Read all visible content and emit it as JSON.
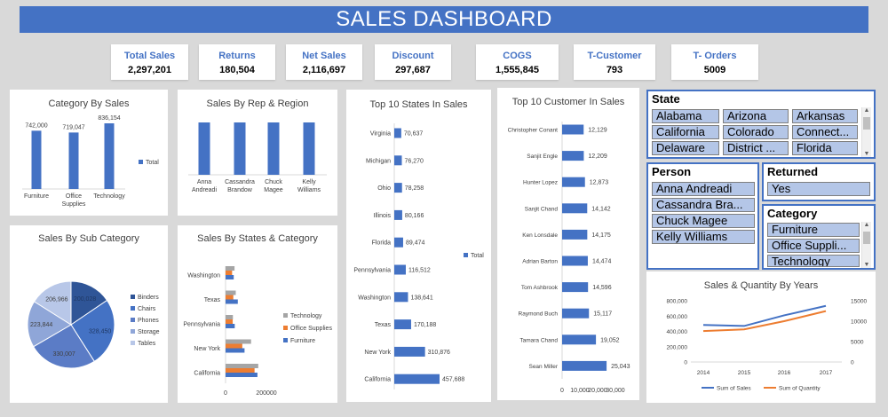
{
  "title": "SALES DASHBOARD",
  "kpis": [
    {
      "label": "Total Sales",
      "value": "2,297,201"
    },
    {
      "label": "Returns",
      "value": "180,504"
    },
    {
      "label": "Net Sales",
      "value": "2,116,697"
    },
    {
      "label": "Discount",
      "value": "297,687"
    },
    {
      "label": "COGS",
      "value": "1,555,845"
    },
    {
      "label": "T-Customer",
      "value": "793"
    },
    {
      "label": "T- Orders",
      "value": "5009"
    }
  ],
  "slicers": {
    "state": {
      "header": "State",
      "items": [
        "Alabama",
        "Arizona",
        "Arkansas",
        "California",
        "Colorado",
        "Connect...",
        "Delaware",
        "District ...",
        "Florida"
      ]
    },
    "person": {
      "header": "Person",
      "items": [
        "Anna Andreadi",
        "Cassandra Bra...",
        "Chuck Magee",
        "Kelly Williams"
      ]
    },
    "returned": {
      "header": "Returned",
      "items": [
        "Yes"
      ]
    },
    "category": {
      "header": "Category",
      "items": [
        "Furniture",
        "Office Suppli...",
        "Technology"
      ]
    }
  },
  "colors": {
    "accent": "#4472c4",
    "orange": "#ed7d31",
    "gray": "#a5a5a5"
  },
  "chart_data": [
    {
      "id": "category",
      "type": "bar",
      "title": "Category By Sales",
      "categories": [
        [
          "Furniture"
        ],
        [
          "Office",
          "Supplies"
        ],
        [
          "Technology"
        ]
      ],
      "values": [
        742000,
        719047,
        836154
      ],
      "value_labels": [
        "742,000",
        "719,047",
        "836,154"
      ],
      "legend": "Total",
      "legend_position": "right"
    },
    {
      "id": "rep",
      "type": "bar",
      "title": "Sales By Rep & Region",
      "categories": [
        [
          "Anna",
          "Andreadi"
        ],
        [
          "Cassandra",
          "Brandow"
        ],
        [
          "Chuck",
          "Magee"
        ],
        [
          "Kelly",
          "Williams"
        ]
      ],
      "values": [
        1,
        1,
        1,
        1
      ]
    },
    {
      "id": "states",
      "type": "bar",
      "orientation": "horizontal",
      "title": "Top 10 States In Sales",
      "categories": [
        "Virginia",
        "Michigan",
        "Ohio",
        "Illinois",
        "Florida",
        "Pennsylvania",
        "Washington",
        "Texas",
        "New York",
        "California"
      ],
      "values": [
        70637,
        76270,
        78258,
        80166,
        89474,
        116512,
        138641,
        170188,
        310876,
        457688
      ],
      "value_labels": [
        "70,637",
        "76,270",
        "78,258",
        "80,166",
        "89,474",
        "116,512",
        "138,641",
        "170,188",
        "310,876",
        "457,688"
      ],
      "legend": "Total",
      "legend_position": "right"
    },
    {
      "id": "customers",
      "type": "bar",
      "orientation": "horizontal",
      "title": "Top 10 Customer In Sales",
      "categories": [
        "Christopher Conant",
        "Sanjit Engle",
        "Hunter Lopez",
        "Sanjit Chand",
        "Ken Lonsdale",
        "Adrian Barton",
        "Tom Ashbrook",
        "Raymond Buch",
        "Tamara Chand",
        "Sean Miller"
      ],
      "values": [
        12129,
        12209,
        12873,
        14142,
        14175,
        14474,
        14596,
        15117,
        19052,
        25043
      ],
      "value_labels": [
        "12,129",
        "12,209",
        "12,873",
        "14,142",
        "14,175",
        "14,474",
        "14,596",
        "15,117",
        "19,052",
        "25,043"
      ],
      "x_ticks": [
        "0",
        "10,000",
        "20,000",
        "30,000"
      ],
      "xlim": [
        0,
        30000
      ]
    },
    {
      "id": "subcat",
      "type": "pie",
      "title": "Sales By Sub Category",
      "labels": [
        "Binders",
        "Chairs",
        "Phones",
        "Storage",
        "Tables"
      ],
      "values": [
        200028,
        328450,
        330007,
        223844,
        206966
      ],
      "value_labels": [
        "200,028",
        "328,450",
        "330,007",
        "223,844",
        "206,966"
      ],
      "colors": [
        "#2f5597",
        "#4472c4",
        "#5b7cc6",
        "#8fa6d8",
        "#b8c7e8"
      ],
      "legend_position": "right"
    },
    {
      "id": "statecat",
      "type": "bar",
      "orientation": "horizontal",
      "stacked": false,
      "title": "Sales By States & Category",
      "categories": [
        "California",
        "New York",
        "Pennsylvania",
        "Texas",
        "Washington"
      ],
      "series": [
        {
          "name": "Furniture",
          "values": [
            156065,
            93000,
            45000,
            60000,
            40000
          ]
        },
        {
          "name": "Office Supplies",
          "values": [
            142000,
            82000,
            35000,
            38000,
            32000
          ]
        },
        {
          "name": "Technology",
          "values": [
            160000,
            125000,
            36000,
            50000,
            44000
          ]
        }
      ],
      "x_ticks": [
        "0",
        "200000"
      ],
      "xlim": [
        0,
        400000
      ],
      "legend_position": "right"
    },
    {
      "id": "years",
      "type": "line",
      "title": "Sales & Quantity By Years",
      "x": [
        "2014",
        "2015",
        "2016",
        "2017"
      ],
      "series": [
        {
          "name": "Sum of Sales",
          "axis": "left",
          "values": [
            484247,
            470533,
            609206,
            733215
          ]
        },
        {
          "name": "Sum of Quantity",
          "axis": "right",
          "values": [
            7581,
            8000,
            10000,
            12476
          ]
        }
      ],
      "y_left_ticks": [
        "0",
        "200,000",
        "400,000",
        "600,000",
        "800,000"
      ],
      "y_left_lim": [
        0,
        800000
      ],
      "y_right_ticks": [
        "0",
        "5000",
        "10000",
        "15000"
      ],
      "y_right_lim": [
        0,
        15000
      ],
      "legend_position": "bottom"
    }
  ]
}
